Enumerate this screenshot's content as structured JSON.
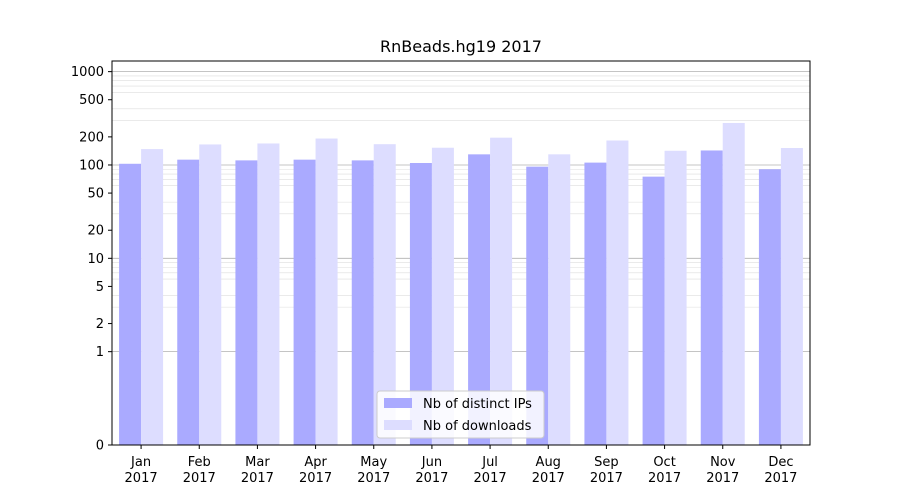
{
  "chart_data": {
    "type": "bar",
    "title": "RnBeads.hg19 2017",
    "xlabel": "",
    "ylabel": "",
    "y_scale": "symlog",
    "ylim": [
      0,
      1300
    ],
    "grid": true,
    "legend_position": "bottom-center",
    "categories": [
      {
        "month": "Jan",
        "year": "2017"
      },
      {
        "month": "Feb",
        "year": "2017"
      },
      {
        "month": "Mar",
        "year": "2017"
      },
      {
        "month": "Apr",
        "year": "2017"
      },
      {
        "month": "May",
        "year": "2017"
      },
      {
        "month": "Jun",
        "year": "2017"
      },
      {
        "month": "Jul",
        "year": "2017"
      },
      {
        "month": "Aug",
        "year": "2017"
      },
      {
        "month": "Sep",
        "year": "2017"
      },
      {
        "month": "Oct",
        "year": "2017"
      },
      {
        "month": "Nov",
        "year": "2017"
      },
      {
        "month": "Dec",
        "year": "2017"
      }
    ],
    "y_ticks": [
      0,
      1,
      2,
      5,
      10,
      20,
      50,
      100,
      200,
      500,
      1000
    ],
    "series": [
      {
        "name": "Nb of distinct IPs",
        "color": "#aaaaff",
        "values": [
          103,
          114,
          112,
          114,
          112,
          105,
          130,
          96,
          106,
          75,
          143,
          90
        ]
      },
      {
        "name": "Nb of downloads",
        "color": "#ddddff",
        "values": [
          148,
          166,
          170,
          192,
          167,
          153,
          196,
          130,
          183,
          142,
          282,
          152
        ]
      }
    ]
  }
}
